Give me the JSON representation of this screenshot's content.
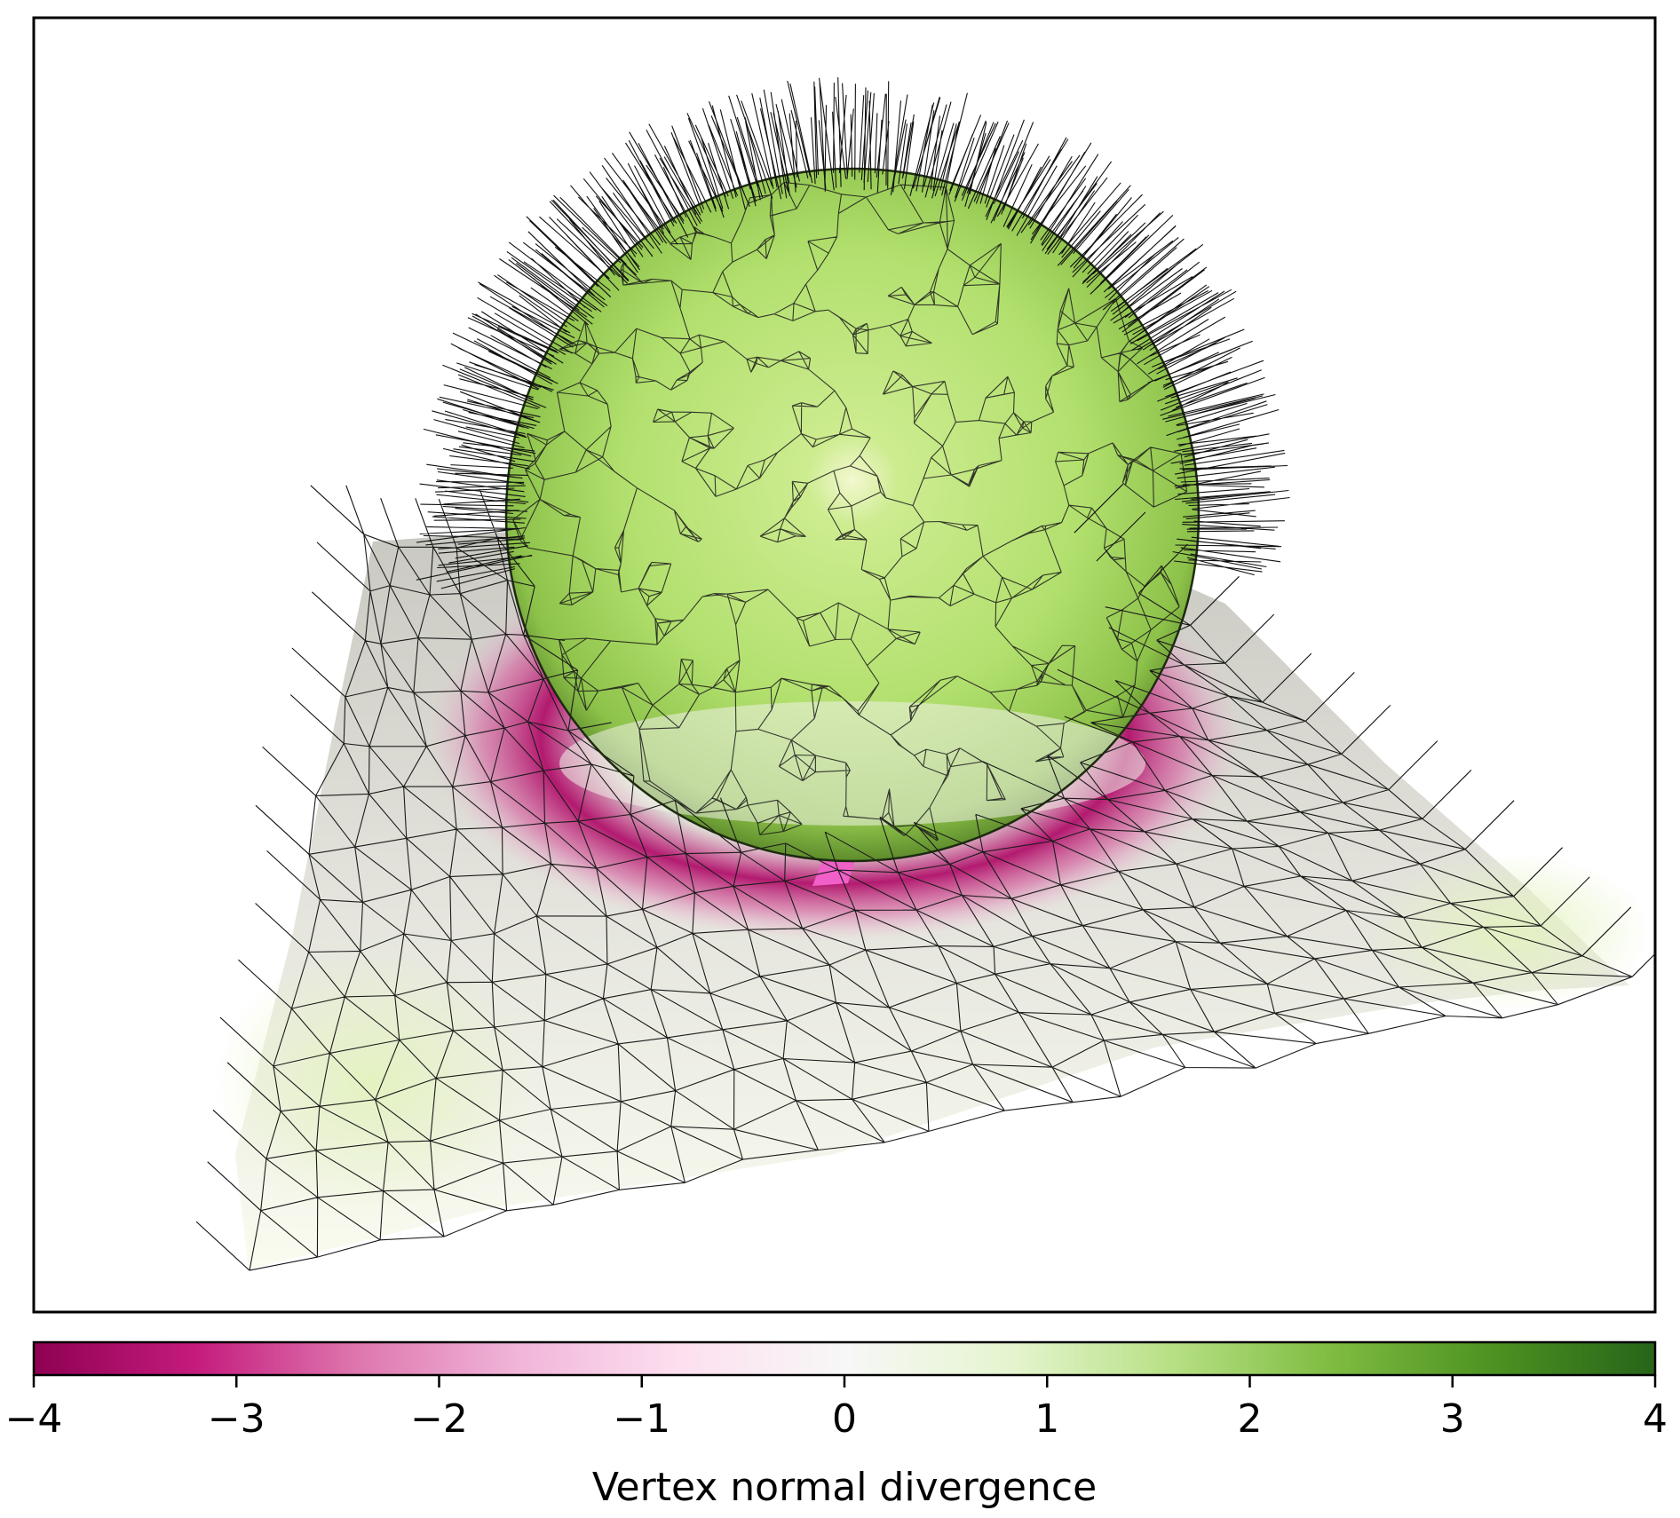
{
  "chart_data": {
    "type": "heatmap",
    "description_kind": "3d_mesh_scalar_field",
    "colormap": "PiYG",
    "colormap_stops": [
      "#8e0152",
      "#c51b7d",
      "#de77ae",
      "#f1b6da",
      "#fde0ef",
      "#f7f7f7",
      "#e6f5d0",
      "#b8e186",
      "#7fbc41",
      "#4d9221",
      "#276419"
    ],
    "colorbar": {
      "label": "Vertex normal divergence",
      "vmin": -4,
      "vmax": 4,
      "ticks": [
        -4,
        -3,
        -2,
        -1,
        0,
        1,
        2,
        3,
        4
      ],
      "tick_labels": [
        "−4",
        "−3",
        "−2",
        "−1",
        "0",
        "1",
        "2",
        "3",
        "4"
      ],
      "orientation": "horizontal",
      "location": "bottom"
    },
    "regions": [
      {
        "name": "sphere surface",
        "value": 1.8
      },
      {
        "name": "sphere highlight",
        "value": 0.6
      },
      {
        "name": "contact ring",
        "value": -3.2
      },
      {
        "name": "ground plane",
        "value": 0.1
      },
      {
        "name": "plane corners",
        "value": 1.2
      }
    ],
    "axes_ticks_visible": false,
    "grid": false,
    "normals_shown": true,
    "wireframe_shown": true
  }
}
